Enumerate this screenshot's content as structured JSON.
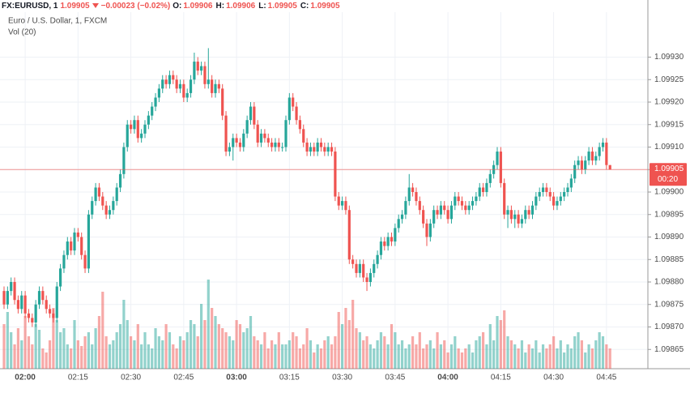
{
  "header": {
    "symbol": "FX:EURUSD, 1",
    "price": "1.09905",
    "change": "−0.00023 (−0.02%)",
    "ohlc": [
      {
        "label": "O:",
        "value": "1.09906"
      },
      {
        "label": "H:",
        "value": "1.09906"
      },
      {
        "label": "L:",
        "value": "1.09905"
      },
      {
        "label": "C:",
        "value": "1.09905"
      }
    ]
  },
  "chart_data": {
    "type": "candlestick",
    "title": "Euro / U.S. Dollar, 1, FXCM",
    "volume_label": "Vol (20)",
    "categories": [
      null,
      null,
      null,
      null,
      null,
      null,
      "02:00",
      null,
      null,
      null,
      null,
      null,
      null,
      null,
      null,
      null,
      null,
      null,
      null,
      null,
      null,
      "02:15",
      null,
      null,
      null,
      null,
      null,
      null,
      null,
      null,
      null,
      null,
      null,
      null,
      null,
      null,
      "02:30",
      null,
      null,
      null,
      null,
      null,
      null,
      null,
      null,
      null,
      null,
      null,
      null,
      null,
      null,
      "02:45",
      null,
      null,
      null,
      null,
      null,
      null,
      null,
      null,
      null,
      null,
      null,
      null,
      null,
      null,
      "03:00",
      null,
      null,
      null,
      null,
      null,
      null,
      null,
      null,
      null,
      null,
      null,
      null,
      null,
      null,
      "03:15",
      null,
      null,
      null,
      null,
      null,
      null,
      null,
      null,
      null,
      null,
      null,
      null,
      null,
      null,
      "03:30",
      null,
      null,
      null,
      null,
      null,
      null,
      null,
      null,
      null,
      null,
      null,
      null,
      null,
      null,
      "03:45",
      null,
      null,
      null,
      null,
      null,
      null,
      null,
      null,
      null,
      null,
      null,
      null,
      null,
      null,
      "04:00",
      null,
      null,
      null,
      null,
      null,
      null,
      null,
      null,
      null,
      null,
      null,
      null,
      null,
      null,
      "04:15",
      null,
      null,
      null,
      null,
      null,
      null,
      null,
      null,
      null,
      null,
      null,
      null,
      null,
      null,
      "04:30",
      null,
      null,
      null,
      null,
      null,
      null,
      null,
      null,
      null,
      null,
      null,
      null,
      null,
      null,
      "04:45",
      null
    ],
    "open": [
      1.09878,
      1.09875,
      1.09878,
      1.0988,
      1.09876,
      1.09874,
      1.09877,
      1.09873,
      1.09872,
      1.09871,
      1.09875,
      1.09878,
      1.09876,
      1.09874,
      1.09873,
      1.09872,
      1.09879,
      1.09883,
      1.09886,
      1.09889,
      1.09887,
      1.09891,
      1.0989,
      1.09886,
      1.09883,
      1.09895,
      1.09898,
      1.09901,
      1.09899,
      1.09897,
      1.09895,
      1.09896,
      1.09898,
      1.09901,
      1.09904,
      1.0991,
      1.09915,
      1.09914,
      1.09916,
      1.09912,
      1.09913,
      1.09915,
      1.09917,
      1.09919,
      1.09921,
      1.09923,
      1.09925,
      1.09924,
      1.09926,
      1.09925,
      1.09923,
      1.09924,
      1.09921,
      1.09922,
      1.09925,
      1.09929,
      1.09927,
      1.09928,
      1.09924,
      1.09925,
      1.09922,
      1.09924,
      1.09923,
      1.09917,
      1.09909,
      1.0991,
      1.09912,
      1.09911,
      1.0991,
      1.09913,
      1.09916,
      1.09919,
      1.09915,
      1.09911,
      1.09913,
      1.09912,
      1.09911,
      1.0991,
      1.09911,
      1.0991,
      1.0991,
      1.09916,
      1.09921,
      1.09919,
      1.09916,
      1.09914,
      1.09911,
      1.09909,
      1.0991,
      1.09909,
      1.09911,
      1.0991,
      1.09909,
      1.0991,
      1.09909,
      1.09899,
      1.09897,
      1.09898,
      1.09896,
      1.09885,
      1.09884,
      1.09882,
      1.09884,
      1.09881,
      1.0988,
      1.09882,
      1.09884,
      1.09886,
      1.09889,
      1.09888,
      1.0989,
      1.09889,
      1.09892,
      1.09894,
      1.09895,
      1.09898,
      1.09901,
      1.099,
      1.09898,
      1.09896,
      1.09893,
      1.0989,
      1.09893,
      1.09896,
      1.09895,
      1.09897,
      1.09896,
      1.09894,
      1.09897,
      1.09899,
      1.09898,
      1.09897,
      1.09896,
      1.09897,
      1.09898,
      1.09899,
      1.09901,
      1.099,
      1.09902,
      1.09904,
      1.09906,
      1.09909,
      1.09902,
      1.09895,
      1.09896,
      1.09894,
      1.09895,
      1.09893,
      1.09894,
      1.09896,
      1.09895,
      1.09897,
      1.09899,
      1.099,
      1.09901,
      1.099,
      1.09899,
      1.09897,
      1.09898,
      1.09899,
      1.099,
      1.09901,
      1.09903,
      1.09906,
      1.09907,
      1.09905,
      1.09907,
      1.09909,
      1.09907,
      1.09908,
      1.0991,
      1.09911,
      1.09906
    ],
    "high": [
      1.09879,
      1.09879,
      1.09881,
      1.09881,
      1.09877,
      1.09878,
      1.09878,
      1.09874,
      1.09873,
      1.09876,
      1.09879,
      1.09879,
      1.09877,
      1.09875,
      1.09874,
      1.0988,
      1.09884,
      1.09887,
      1.0989,
      1.0989,
      1.09892,
      1.09892,
      1.09891,
      1.09887,
      1.09896,
      1.09899,
      1.09902,
      1.09902,
      1.099,
      1.09898,
      1.09897,
      1.09899,
      1.09902,
      1.09905,
      1.09911,
      1.09916,
      1.09916,
      1.09917,
      1.09917,
      1.09914,
      1.09916,
      1.09918,
      1.0992,
      1.09922,
      1.09924,
      1.09926,
      1.09926,
      1.09927,
      1.09927,
      1.09926,
      1.09925,
      1.09925,
      1.09923,
      1.09926,
      1.09931,
      1.0993,
      1.09929,
      1.09929,
      1.09932,
      1.09926,
      1.09925,
      1.09925,
      1.09924,
      1.09918,
      1.09911,
      1.09913,
      1.09913,
      1.09912,
      1.09914,
      1.09917,
      1.0992,
      1.0992,
      1.09916,
      1.09914,
      1.09914,
      1.09913,
      1.09912,
      1.09912,
      1.09912,
      1.09911,
      1.09917,
      1.09922,
      1.09922,
      1.0992,
      1.09917,
      1.09915,
      1.09912,
      1.09911,
      1.09911,
      1.09912,
      1.09912,
      1.09911,
      1.09911,
      1.09911,
      1.0991,
      1.099,
      1.09899,
      1.09899,
      1.09897,
      1.09886,
      1.09885,
      1.09885,
      1.09885,
      1.09882,
      1.09883,
      1.09885,
      1.09887,
      1.0989,
      1.0989,
      1.09891,
      1.09891,
      1.09893,
      1.09895,
      1.09896,
      1.09899,
      1.09904,
      1.09902,
      1.09901,
      1.09899,
      1.09897,
      1.09894,
      1.09894,
      1.09897,
      1.09897,
      1.09898,
      1.09898,
      1.09897,
      1.09898,
      1.099,
      1.099,
      1.09899,
      1.09898,
      1.09898,
      1.09899,
      1.099,
      1.09902,
      1.09902,
      1.09903,
      1.09905,
      1.09907,
      1.0991,
      1.0991,
      1.09903,
      1.09897,
      1.09897,
      1.09896,
      1.09896,
      1.09895,
      1.09897,
      1.09897,
      1.09898,
      1.099,
      1.09901,
      1.09902,
      1.09902,
      1.09901,
      1.099,
      1.09899,
      1.099,
      1.09901,
      1.09902,
      1.09904,
      1.09907,
      1.09908,
      1.09908,
      1.09908,
      1.0991,
      1.0991,
      1.09909,
      1.09911,
      1.09912,
      1.09912,
      1.09906
    ],
    "low": [
      1.09874,
      1.09874,
      1.09877,
      1.09875,
      1.09873,
      1.09873,
      1.09872,
      1.09871,
      1.0987,
      1.0987,
      1.09874,
      1.09875,
      1.09873,
      1.09872,
      1.09871,
      1.09871,
      1.09878,
      1.09882,
      1.09885,
      1.09886,
      1.09886,
      1.09889,
      1.09885,
      1.09882,
      1.09882,
      1.09894,
      1.09897,
      1.09898,
      1.09896,
      1.09894,
      1.09894,
      1.09895,
      1.09897,
      1.099,
      1.09903,
      1.09909,
      1.09913,
      1.09913,
      1.09911,
      1.09911,
      1.09912,
      1.09914,
      1.09916,
      1.09918,
      1.0992,
      1.09922,
      1.09923,
      1.09923,
      1.09924,
      1.09922,
      1.09922,
      1.0992,
      1.0992,
      1.09921,
      1.09924,
      1.09926,
      1.09926,
      1.09923,
      1.09923,
      1.09921,
      1.09921,
      1.09922,
      1.09916,
      1.09908,
      1.09908,
      1.09907,
      1.0991,
      1.09909,
      1.09909,
      1.09912,
      1.09915,
      1.09914,
      1.0991,
      1.0991,
      1.09911,
      1.0991,
      1.09909,
      1.09909,
      1.09909,
      1.09909,
      1.09909,
      1.09915,
      1.09918,
      1.09915,
      1.09913,
      1.0991,
      1.09908,
      1.09908,
      1.09908,
      1.09908,
      1.09909,
      1.09908,
      1.09908,
      1.09908,
      1.09898,
      1.09896,
      1.09896,
      1.09895,
      1.09884,
      1.09883,
      1.09881,
      1.09881,
      1.0988,
      1.09878,
      1.09879,
      1.09881,
      1.09883,
      1.09885,
      1.09887,
      1.09887,
      1.09888,
      1.09888,
      1.09891,
      1.09893,
      1.09894,
      1.09897,
      1.09899,
      1.09897,
      1.09895,
      1.09892,
      1.09888,
      1.09889,
      1.09892,
      1.09894,
      1.09894,
      1.09895,
      1.09893,
      1.09893,
      1.09896,
      1.09897,
      1.09896,
      1.09895,
      1.09895,
      1.09896,
      1.09897,
      1.09898,
      1.09899,
      1.09899,
      1.09901,
      1.09903,
      1.09905,
      1.09901,
      1.09894,
      1.09892,
      1.09893,
      1.09892,
      1.09892,
      1.09892,
      1.09893,
      1.09894,
      1.09894,
      1.09896,
      1.09898,
      1.09899,
      1.09899,
      1.09898,
      1.09896,
      1.09896,
      1.09897,
      1.09898,
      1.09899,
      1.099,
      1.09902,
      1.09905,
      1.09904,
      1.09904,
      1.09906,
      1.09906,
      1.09906,
      1.09907,
      1.09909,
      1.09905,
      1.09905
    ],
    "close": [
      1.09875,
      1.09878,
      1.0988,
      1.09876,
      1.09874,
      1.09877,
      1.09873,
      1.09872,
      1.09871,
      1.09875,
      1.09878,
      1.09876,
      1.09874,
      1.09873,
      1.09872,
      1.09879,
      1.09883,
      1.09886,
      1.09889,
      1.09887,
      1.09891,
      1.0989,
      1.09886,
      1.09883,
      1.09895,
      1.09898,
      1.09901,
      1.09899,
      1.09897,
      1.09895,
      1.09896,
      1.09898,
      1.09901,
      1.09904,
      1.0991,
      1.09915,
      1.09914,
      1.09916,
      1.09912,
      1.09913,
      1.09915,
      1.09917,
      1.09919,
      1.09921,
      1.09923,
      1.09925,
      1.09924,
      1.09926,
      1.09925,
      1.09923,
      1.09924,
      1.09921,
      1.09922,
      1.09925,
      1.09929,
      1.09927,
      1.09928,
      1.09924,
      1.09925,
      1.09922,
      1.09924,
      1.09923,
      1.09917,
      1.09909,
      1.0991,
      1.09912,
      1.09911,
      1.0991,
      1.09913,
      1.09916,
      1.09919,
      1.09915,
      1.09911,
      1.09913,
      1.09912,
      1.09911,
      1.0991,
      1.09911,
      1.0991,
      1.0991,
      1.09916,
      1.09921,
      1.09919,
      1.09916,
      1.09914,
      1.09911,
      1.09909,
      1.0991,
      1.09909,
      1.09911,
      1.0991,
      1.09909,
      1.0991,
      1.09909,
      1.09899,
      1.09897,
      1.09898,
      1.09896,
      1.09885,
      1.09884,
      1.09882,
      1.09884,
      1.09881,
      1.0988,
      1.09882,
      1.09884,
      1.09886,
      1.09889,
      1.09888,
      1.0989,
      1.09889,
      1.09892,
      1.09894,
      1.09895,
      1.09898,
      1.09901,
      1.099,
      1.09898,
      1.09896,
      1.09893,
      1.0989,
      1.09893,
      1.09896,
      1.09895,
      1.09897,
      1.09896,
      1.09894,
      1.09897,
      1.09899,
      1.09898,
      1.09897,
      1.09896,
      1.09897,
      1.09898,
      1.09899,
      1.09901,
      1.099,
      1.09902,
      1.09904,
      1.09906,
      1.09909,
      1.09902,
      1.09895,
      1.09896,
      1.09894,
      1.09895,
      1.09893,
      1.09894,
      1.09896,
      1.09895,
      1.09897,
      1.09899,
      1.099,
      1.09901,
      1.099,
      1.09899,
      1.09897,
      1.09898,
      1.09899,
      1.099,
      1.09901,
      1.09903,
      1.09906,
      1.09907,
      1.09905,
      1.09907,
      1.09909,
      1.09907,
      1.09908,
      1.0991,
      1.09911,
      1.09906,
      1.09905
    ],
    "volume": [
      55,
      70,
      45,
      30,
      50,
      35,
      65,
      40,
      30,
      55,
      48,
      25,
      20,
      35,
      75,
      60,
      45,
      50,
      30,
      25,
      60,
      35,
      28,
      40,
      45,
      30,
      50,
      65,
      95,
      40,
      30,
      35,
      45,
      55,
      85,
      60,
      40,
      35,
      55,
      30,
      45,
      30,
      25,
      50,
      40,
      35,
      55,
      45,
      30,
      25,
      40,
      35,
      45,
      60,
      55,
      40,
      80,
      60,
      110,
      75,
      65,
      55,
      50,
      45,
      40,
      35,
      60,
      55,
      45,
      50,
      65,
      40,
      35,
      30,
      45,
      25,
      35,
      30,
      45,
      30,
      30,
      35,
      45,
      40,
      25,
      30,
      50,
      35,
      20,
      30,
      25,
      35,
      40,
      30,
      40,
      70,
      55,
      75,
      60,
      85,
      50,
      45,
      35,
      40,
      30,
      25,
      35,
      45,
      40,
      30,
      55,
      45,
      30,
      35,
      25,
      30,
      40,
      30,
      45,
      25,
      30,
      35,
      25,
      45,
      30,
      35,
      20,
      30,
      40,
      25,
      20,
      25,
      30,
      20,
      35,
      40,
      45,
      30,
      55,
      35,
      65,
      60,
      72,
      40,
      35,
      30,
      25,
      35,
      20,
      30,
      25,
      35,
      20,
      30,
      25,
      30,
      40,
      25,
      35,
      20,
      30,
      25,
      40,
      45,
      35,
      20,
      30,
      25,
      35,
      45,
      40,
      30,
      25
    ],
    "up_color": "#26a69a",
    "down_color": "#ef5350",
    "ylim": [
      1.0986,
      1.0994
    ],
    "yticks": [
      1.09865,
      {
        "value": 1.0987,
        "label": "1.09870"
      },
      1.09875,
      {
        "value": 1.0988,
        "label": "1.09880"
      },
      1.09885,
      {
        "value": 1.0989,
        "label": "1.09890"
      },
      1.09895,
      {
        "value": 1.099,
        "label": "1.09900"
      },
      1.09905,
      {
        "value": 1.0991,
        "label": "1.09910"
      },
      1.09915,
      {
        "value": 1.0992,
        "label": "1.09920"
      },
      1.09925,
      {
        "value": 1.0993,
        "label": "1.09930"
      }
    ],
    "last_price": 1.09905,
    "countdown": "00:20",
    "grid": true
  }
}
